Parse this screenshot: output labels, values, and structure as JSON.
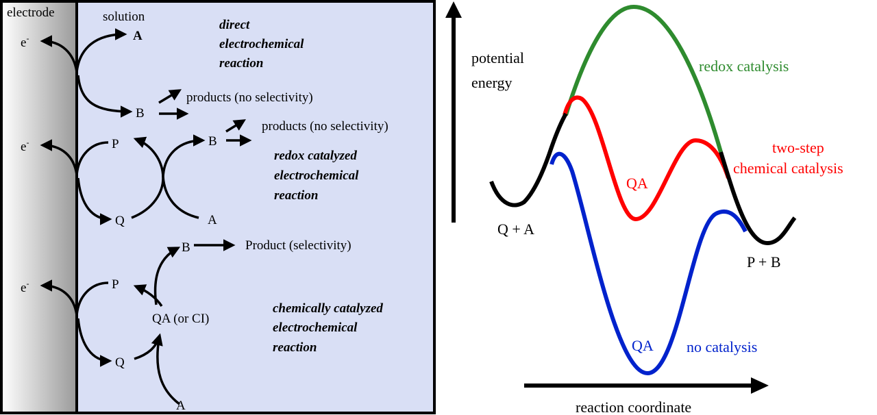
{
  "left_panel": {
    "electrode_label": "electrode",
    "solution_label": "solution",
    "electron": "e",
    "electron_sup": "-",
    "direct": {
      "species_a": "A",
      "species_b": "B",
      "products_label": "products (no selectivity)",
      "title_lines": [
        "direct",
        "electrochemical",
        "reaction"
      ]
    },
    "redox": {
      "species_p": "P",
      "species_q": "Q",
      "species_a": "A",
      "species_b": "B",
      "products_label": "products (no selectivity)",
      "title_lines": [
        "redox catalyzed",
        "electrochemical",
        "reaction"
      ]
    },
    "chemical": {
      "species_p": "P",
      "species_q": "Q",
      "species_a": "A",
      "species_b": "B",
      "intermediate": "QA (or CI)",
      "product_label": "Product (selectivity)",
      "title_lines": [
        "chemically catalyzed",
        "electrochemical",
        "reaction"
      ]
    },
    "colors": {
      "electrode_dark": "#999999",
      "solution_bg": "#d9dff5"
    }
  },
  "right_panel": {
    "y_axis_label_lines": [
      "potential",
      "energy"
    ],
    "x_axis_label": "reaction coordinate",
    "start_label": "Q + A",
    "end_label": "P + B",
    "curves": [
      {
        "name": "redox catalysis",
        "color": "#2e8b2e",
        "label": "redox catalysis"
      },
      {
        "name": "two-step chemical catalysis",
        "color": "#ff0000",
        "label_lines": [
          "two-step",
          "chemical catalysis"
        ],
        "intermediate": "QA"
      },
      {
        "name": "no catalysis",
        "color": "#0022cc",
        "label": "no catalysis",
        "intermediate": "QA"
      }
    ]
  }
}
